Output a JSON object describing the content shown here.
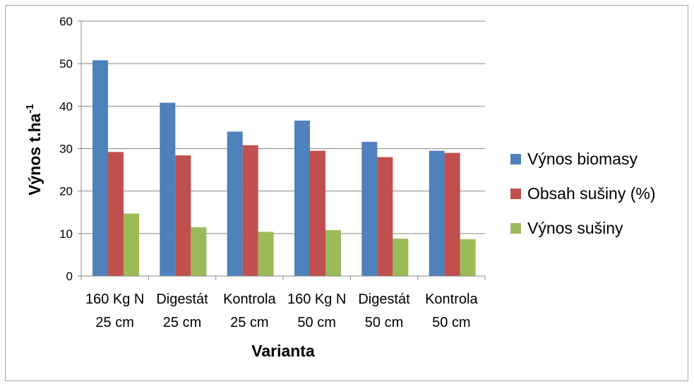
{
  "chart_data": {
    "type": "bar",
    "categories": [
      [
        "160 Kg N",
        "25 cm"
      ],
      [
        "Digestát",
        "25 cm"
      ],
      [
        "Kontrola",
        "25 cm"
      ],
      [
        "160 Kg N",
        "50 cm"
      ],
      [
        "Digestát",
        "50 cm"
      ],
      [
        "Kontrola",
        "50 cm"
      ]
    ],
    "series": [
      {
        "name": "Výnos biomasy",
        "color": "#4F81BD",
        "values": [
          50.8,
          40.8,
          34.0,
          36.6,
          31.6,
          29.5
        ]
      },
      {
        "name": "Obsah sušiny (%)",
        "color": "#C0504D",
        "values": [
          29.2,
          28.4,
          30.8,
          29.5,
          28.0,
          29.0
        ]
      },
      {
        "name": "Výnos sušiny",
        "color": "#9BBB59",
        "values": [
          14.7,
          11.5,
          10.4,
          10.8,
          8.8,
          8.7
        ]
      }
    ],
    "title": "",
    "xlabel": "Varianta",
    "ylabel": "Výnos t.ha",
    "ylabel_superscript": "-1",
    "ylim": [
      0,
      60
    ],
    "yticks": [
      0,
      10,
      20,
      30,
      40,
      50,
      60
    ],
    "grid": true,
    "legend_position": "right"
  }
}
